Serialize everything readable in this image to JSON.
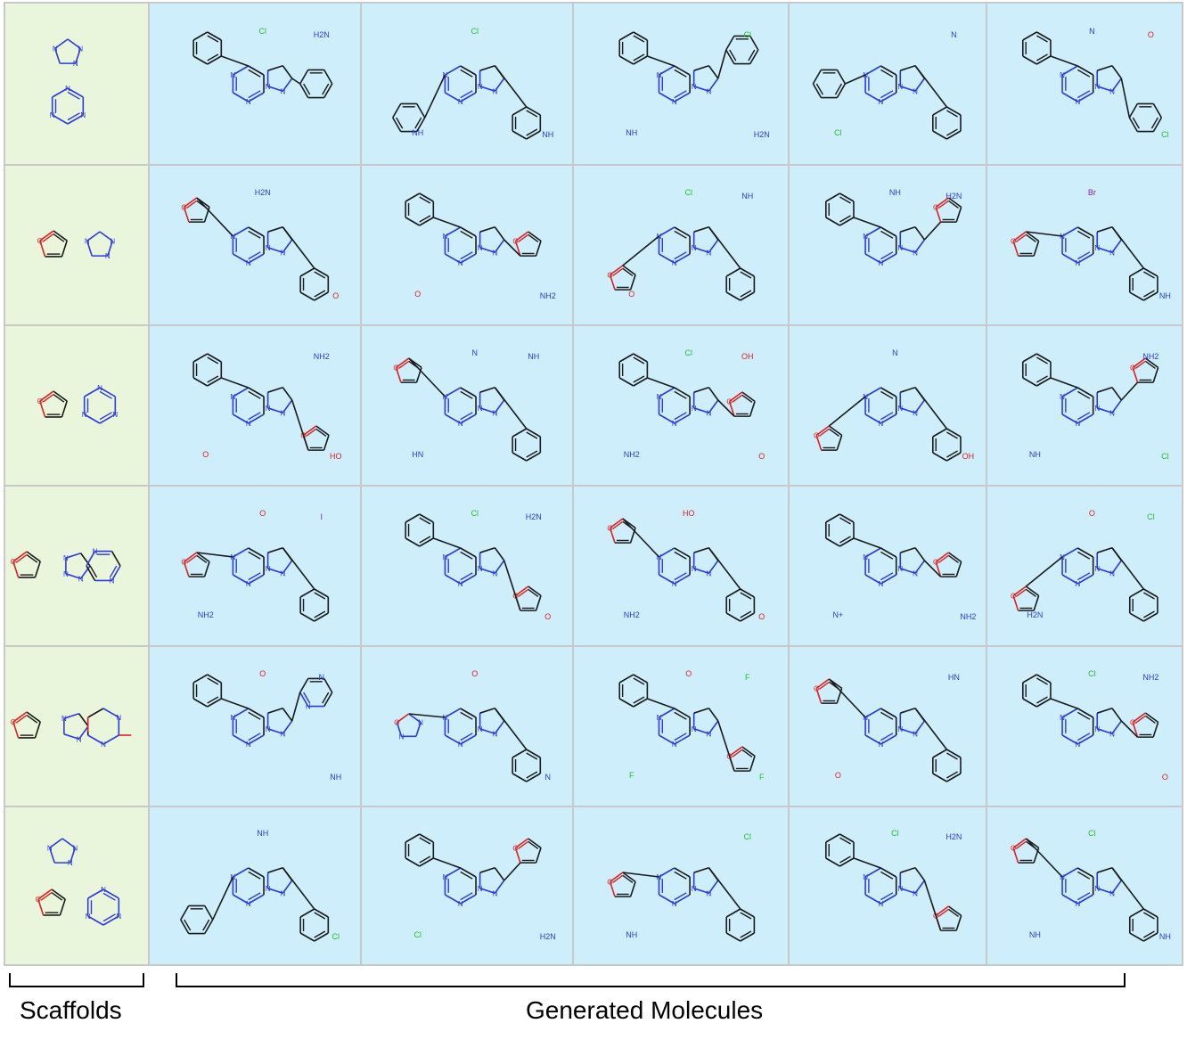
{
  "colors": {
    "scaffold_bg": "#eaf6dc",
    "generated_bg": "#cdeefa",
    "grid_line": "#c8c8c8",
    "carbon": "#1a1a1a",
    "nitrogen": "#2b3be0",
    "oxygen": "#e02020",
    "chlorine": "#22c02a",
    "iodine": "#8b1fa0"
  },
  "captions": {
    "scaffolds": "Scaffolds",
    "generated": "Generated Molecules"
  },
  "rows": [
    {
      "scaffold": [
        "triazole",
        "triazine"
      ],
      "generated": [
        {
          "core": "fused-triazolo",
          "ring": "aryl",
          "labels": [
            "H2N",
            "Cl"
          ]
        },
        {
          "core": "fused-triazolo",
          "ring": "aryl",
          "labels": [
            "Cl",
            "NH",
            "NH"
          ]
        },
        {
          "core": "fused-triazolo",
          "ring": "aryl",
          "labels": [
            "H2N",
            "NH",
            "Cl"
          ]
        },
        {
          "core": "fused-triazolo",
          "ring": "aryl",
          "labels": [
            "Cl",
            "N"
          ]
        },
        {
          "core": "fused-triazolo",
          "ring": "aryl",
          "labels": [
            "O",
            "N",
            "Cl"
          ]
        }
      ]
    },
    {
      "scaffold": [
        "furan",
        "triazole"
      ],
      "generated": [
        {
          "core": "fused-triazolo",
          "ring": "furan",
          "labels": [
            "H2N",
            "O"
          ]
        },
        {
          "core": "fused-triazolo",
          "ring": "furan",
          "labels": [
            "NH2",
            "O"
          ]
        },
        {
          "core": "fused-triazolo",
          "ring": "furan",
          "labels": [
            "O",
            "NH",
            "Cl"
          ]
        },
        {
          "core": "fused-triazolo",
          "ring": "furan",
          "labels": [
            "H2N",
            "NH"
          ]
        },
        {
          "core": "fused-triazolo",
          "ring": "furan",
          "labels": [
            "Br",
            "NH"
          ]
        }
      ]
    },
    {
      "scaffold": [
        "furan",
        "triazine"
      ],
      "generated": [
        {
          "core": "fused-triazolo",
          "ring": "furan",
          "labels": [
            "HO",
            "O",
            "NH2"
          ]
        },
        {
          "core": "fused-triazolo",
          "ring": "furan",
          "labels": [
            "HN",
            "NH",
            "N"
          ]
        },
        {
          "core": "fused-triazolo",
          "ring": "furan",
          "labels": [
            "OH",
            "Cl",
            "O",
            "NH2"
          ]
        },
        {
          "core": "fused-triazolo",
          "ring": "furan",
          "labels": [
            "N",
            "OH"
          ]
        },
        {
          "core": "fused-triazolo",
          "ring": "furan",
          "labels": [
            "Cl",
            "NH",
            "NH2"
          ]
        }
      ]
    },
    {
      "scaffold": [
        "furan",
        "triazolopyrimidine"
      ],
      "generated": [
        {
          "core": "fused-triazolo",
          "ring": "furan",
          "labels": [
            "NH2",
            "I",
            "O"
          ]
        },
        {
          "core": "fused-triazolo",
          "ring": "furan",
          "labels": [
            "H2N",
            "Cl",
            "O"
          ]
        },
        {
          "core": "fused-triazolo",
          "ring": "furan",
          "labels": [
            "HO",
            "O",
            "NH2"
          ]
        },
        {
          "core": "fused-triazolo",
          "ring": "furan",
          "labels": [
            "NH2",
            "N+"
          ]
        },
        {
          "core": "fused-triazolo",
          "ring": "furan",
          "labels": [
            "H2N",
            "Cl",
            "O"
          ]
        }
      ]
    },
    {
      "scaffold": [
        "furan",
        "xanthine"
      ],
      "generated": [
        {
          "core": "fused-triazolo",
          "ring": "pyridine",
          "labels": [
            "N",
            "O",
            "NH"
          ]
        },
        {
          "core": "fused-triazolo",
          "ring": "oxadiazole",
          "labels": [
            "O",
            "N"
          ]
        },
        {
          "core": "fused-triazolo",
          "ring": "furan",
          "labels": [
            "F",
            "F",
            "F",
            "O"
          ]
        },
        {
          "core": "fused-triazolo",
          "ring": "furan",
          "labels": [
            "O",
            "HN"
          ]
        },
        {
          "core": "fused-triazolo",
          "ring": "furan",
          "labels": [
            "NH2",
            "Cl",
            "O"
          ]
        }
      ]
    },
    {
      "scaffold": [
        "triazole",
        "furan",
        "triazine"
      ],
      "generated": [
        {
          "core": "fused-triazolo",
          "ring": "aryl",
          "labels": [
            "NH",
            "Cl"
          ]
        },
        {
          "core": "fused-triazolo",
          "ring": "furan",
          "labels": [
            "H2N",
            "Cl"
          ]
        },
        {
          "core": "fused-triazolo",
          "ring": "furan",
          "labels": [
            "NH",
            "Cl"
          ]
        },
        {
          "core": "fused-triazolo",
          "ring": "furan",
          "labels": [
            "H2N",
            "Cl"
          ]
        },
        {
          "core": "fused-triazolo",
          "ring": "furan",
          "labels": [
            "Cl",
            "NH",
            "NH"
          ]
        }
      ]
    }
  ]
}
